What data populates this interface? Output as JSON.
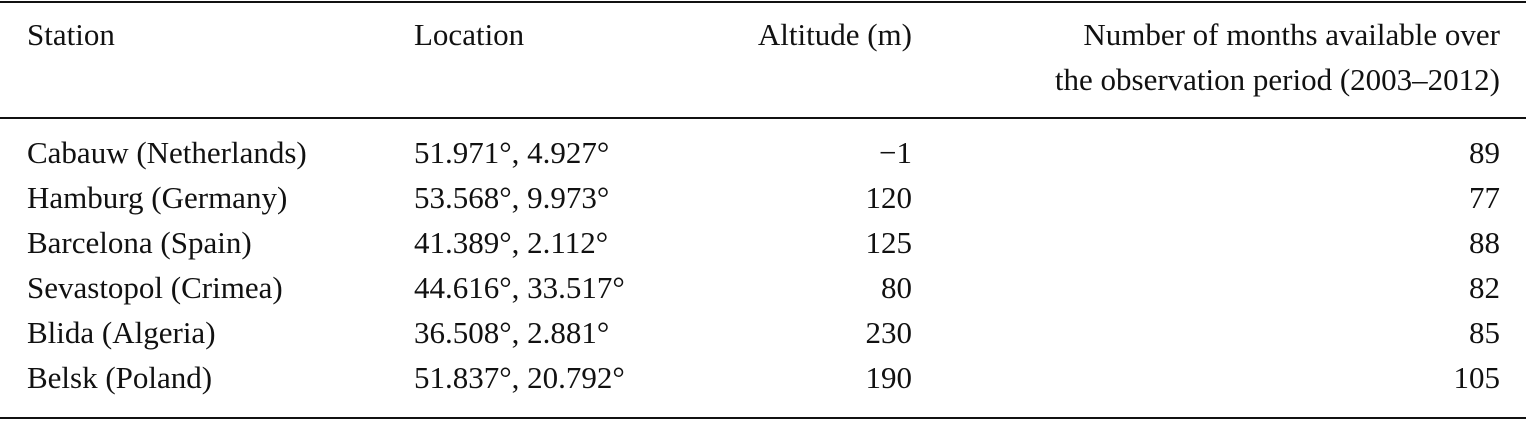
{
  "table": {
    "header": [
      "Station",
      "Location",
      "Altitude (m)",
      [
        "Number of months available over",
        "the observation period (2003–2012)"
      ]
    ],
    "rows": [
      [
        "Cabauw (Netherlands)",
        "51.971°, 4.927°",
        "−1",
        "89"
      ],
      [
        "Hamburg (Germany)",
        "53.568°, 9.973°",
        "120",
        "77"
      ],
      [
        "Barcelona (Spain)",
        "41.389°, 2.112°",
        "125",
        "88"
      ],
      [
        "Sevastopol (Crimea)",
        "44.616°, 33.517°",
        "80",
        "82"
      ],
      [
        "Blida (Algeria)",
        "36.508°, 2.881°",
        "230",
        "85"
      ],
      [
        "Belsk (Poland)",
        "51.837°, 20.792°",
        "190",
        "105"
      ]
    ]
  }
}
